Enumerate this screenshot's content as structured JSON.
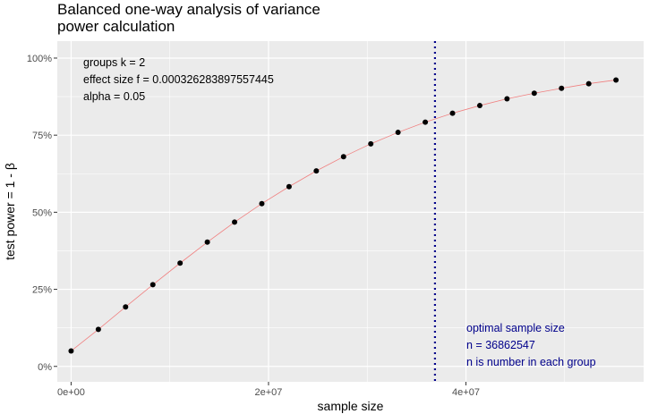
{
  "chart_data": {
    "type": "line",
    "title_lines": [
      "Balanced one-way analysis of variance",
      "power calculation"
    ],
    "xlabel": "sample size",
    "ylabel": "test power = 1 - β",
    "xlim": [
      -1400000,
      58000000
    ],
    "ylim": [
      -0.05,
      1.055
    ],
    "x_ticks": [
      0,
      20000000,
      40000000
    ],
    "x_tick_labels": [
      "0e+00",
      "2e+07",
      "4e+07"
    ],
    "y_ticks": [
      0,
      0.25,
      0.5,
      0.75,
      1.0
    ],
    "y_tick_labels": [
      "0%",
      "25%",
      "50%",
      "75%",
      "100%"
    ],
    "grid": true,
    "series": [
      {
        "x": [
          0,
          2760000,
          5520000,
          8280000,
          11040000,
          13800000,
          16560000,
          19320000,
          22080000,
          24840000,
          27600000,
          30360000,
          33120000,
          35880000,
          38640000,
          41400000,
          44160000,
          46920000,
          49680000,
          52440000,
          55200000
        ],
        "y": [
          0.05,
          0.12,
          0.193,
          0.265,
          0.335,
          0.403,
          0.468,
          0.528,
          0.583,
          0.634,
          0.68,
          0.722,
          0.759,
          0.792,
          0.821,
          0.846,
          0.868,
          0.886,
          0.902,
          0.917,
          0.929
        ],
        "point_color": "#000000",
        "line_color": "#f08080"
      }
    ],
    "info_lines": [
      "groups k = 2",
      "effect size f = 0.000326283897557445",
      "alpha = 0.05"
    ],
    "optimal_line": {
      "x": 36862547,
      "color": "#00008b",
      "style": "dotted"
    },
    "optimal_text": [
      "optimal sample size",
      "n = 36862547",
      "n is number in each group"
    ],
    "colors": {
      "panel": "#ebebeb",
      "grid": "#ffffff",
      "optimal": "#00008b"
    }
  }
}
